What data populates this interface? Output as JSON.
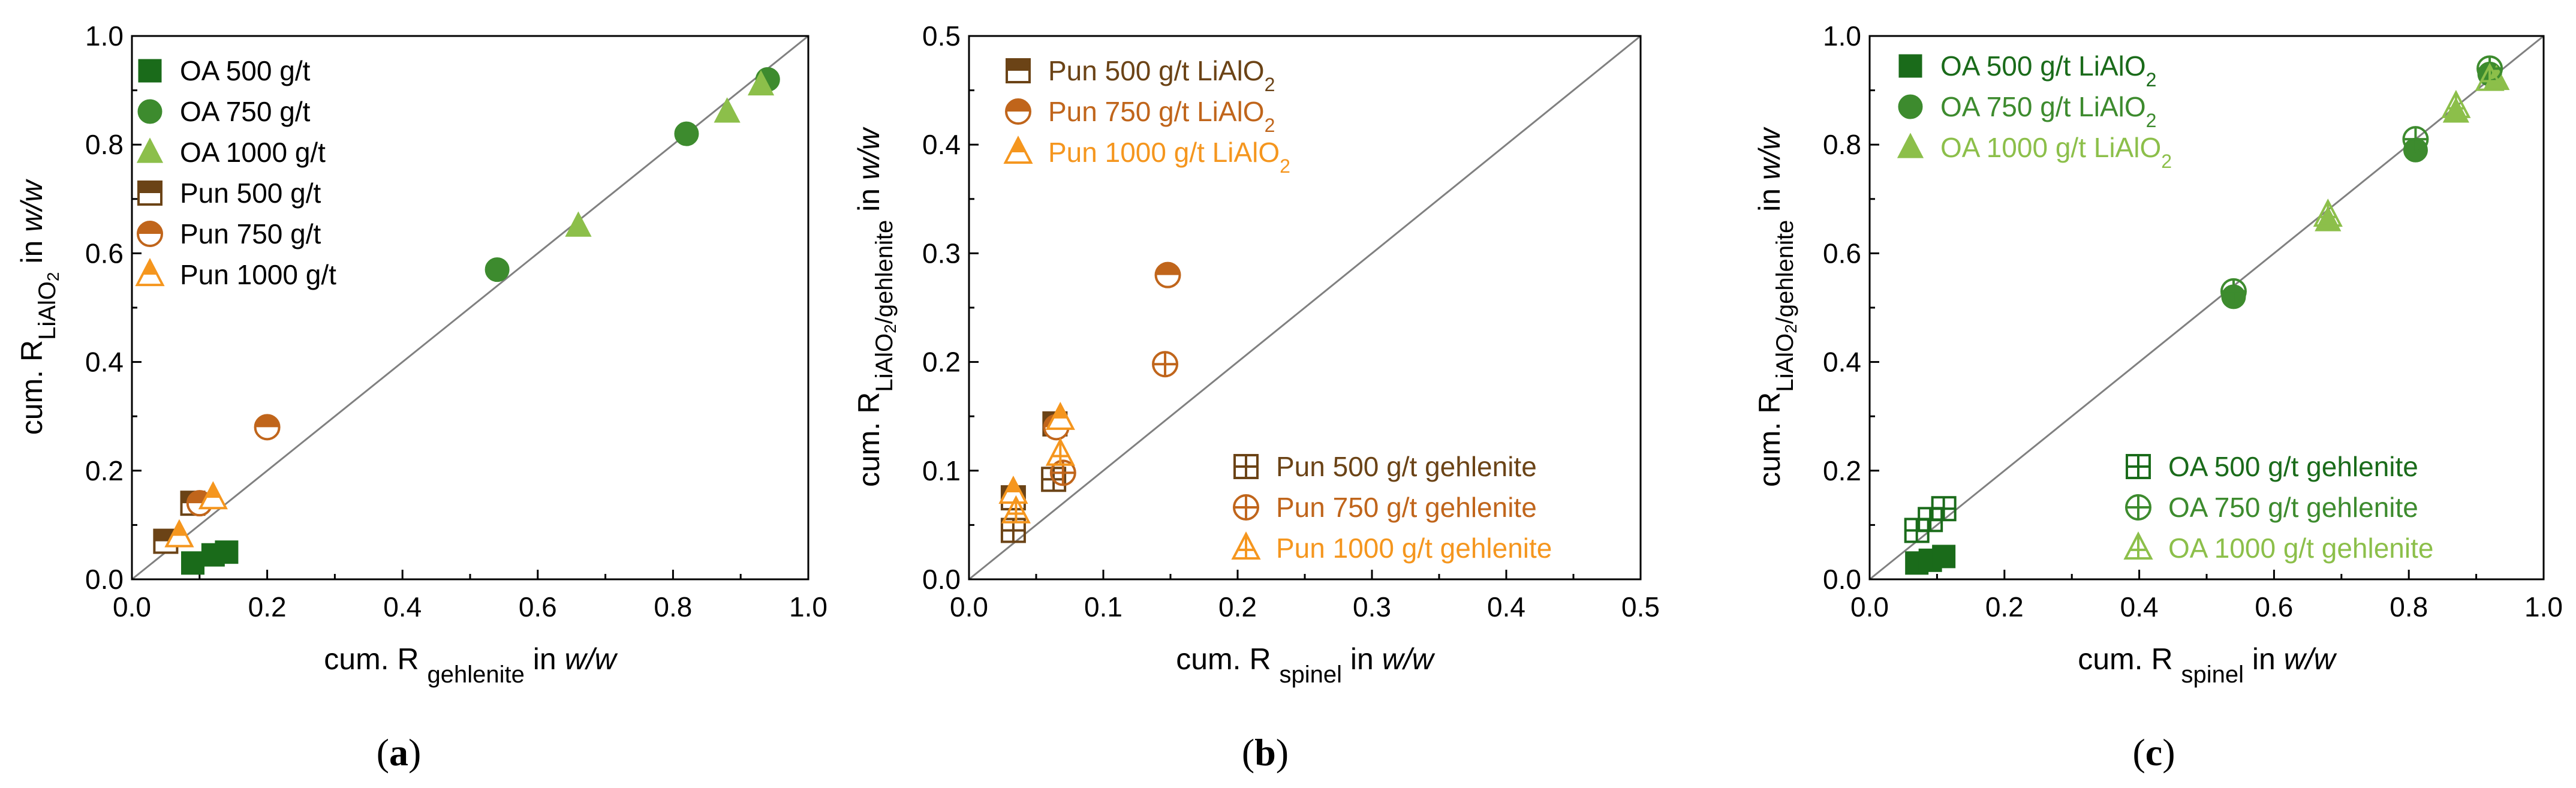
{
  "chart_data": [
    {
      "type": "scatter",
      "panel_label": "(a)",
      "panel_letter": "a",
      "xlabel": "cum. R gehlenite in w/w",
      "xlabel_parts": [
        "cum. R ",
        "gehlenite",
        " in ",
        "w/w"
      ],
      "ylabel": "cum. R LiAlO2 in w/w",
      "ylabel_parts": [
        "cum. R",
        "LiAlO",
        "2",
        " in ",
        "w/w"
      ],
      "xlim": [
        0.0,
        1.0
      ],
      "ylim": [
        0.0,
        1.0
      ],
      "x_ticks": [
        "0.0",
        "0.2",
        "0.4",
        "0.6",
        "0.8",
        "1.0"
      ],
      "y_ticks": [
        "0.0",
        "0.2",
        "0.4",
        "0.6",
        "0.8",
        "1.0"
      ],
      "diagonal": true,
      "legend_position": "top-left",
      "series": [
        {
          "name": "OA 500 g/t",
          "name_parts": [
            "OA 500 g/t"
          ],
          "label_color": "#000000",
          "marker": "square",
          "color": "#1a6b1a",
          "points": [
            [
              0.09,
              0.03
            ],
            [
              0.12,
              0.045
            ],
            [
              0.14,
              0.05
            ]
          ]
        },
        {
          "name": "OA 750 g/t",
          "name_parts": [
            "OA 750 g/t"
          ],
          "label_color": "#000000",
          "marker": "circle",
          "color": "#3d8b2e",
          "points": [
            [
              0.54,
              0.57
            ],
            [
              0.82,
              0.82
            ],
            [
              0.94,
              0.92
            ]
          ]
        },
        {
          "name": "OA 1000 g/t",
          "name_parts": [
            "OA 1000 g/t"
          ],
          "label_color": "#000000",
          "marker": "triangle",
          "color": "#8cbf4a",
          "points": [
            [
              0.66,
              0.65
            ],
            [
              0.88,
              0.86
            ],
            [
              0.93,
              0.91
            ]
          ]
        },
        {
          "name": "Pun 500 g/t",
          "name_parts": [
            "Pun 500 g/t"
          ],
          "label_color": "#000000",
          "marker": "square-half",
          "color": "#6b4316",
          "points": [
            [
              0.05,
              0.07
            ],
            [
              0.09,
              0.14
            ]
          ]
        },
        {
          "name": "Pun 750 g/t",
          "name_parts": [
            "Pun 750 g/t"
          ],
          "label_color": "#000000",
          "marker": "circle-half",
          "color": "#c0651b",
          "points": [
            [
              0.1,
              0.14
            ],
            [
              0.2,
              0.28
            ]
          ]
        },
        {
          "name": "Pun 1000 g/t",
          "name_parts": [
            "Pun 1000 g/t"
          ],
          "label_color": "#000000",
          "marker": "triangle-half",
          "color": "#f5961e",
          "points": [
            [
              0.07,
              0.08
            ],
            [
              0.12,
              0.15
            ]
          ]
        }
      ]
    },
    {
      "type": "scatter",
      "panel_label": "(b)",
      "panel_letter": "b",
      "xlabel": "cum. R spinel in w/w",
      "xlabel_parts": [
        "cum. R ",
        "spinel",
        " in ",
        "w/w"
      ],
      "ylabel": "cum. R LiAlO2/gehlenite in w/w",
      "ylabel_parts": [
        "cum. R",
        "LiAlO",
        "2",
        "/gehlenite",
        " in ",
        "w/w"
      ],
      "xlim": [
        0.0,
        0.5
      ],
      "ylim": [
        0.0,
        0.5
      ],
      "x_ticks": [
        "0.0",
        "0.1",
        "0.2",
        "0.3",
        "0.4",
        "0.5"
      ],
      "y_ticks": [
        "0.0",
        "0.1",
        "0.2",
        "0.3",
        "0.4",
        "0.5"
      ],
      "diagonal": true,
      "legend_position": "top-left and bottom-right",
      "series": [
        {
          "name": "Pun 500 g/t LiAlO2",
          "name_parts": [
            "Pun 500 g/t LiAlO",
            "2"
          ],
          "label_color": "#6b4316",
          "marker": "square-half",
          "color": "#6b4316",
          "group": "top",
          "points": [
            [
              0.033,
              0.075
            ],
            [
              0.064,
              0.143
            ]
          ]
        },
        {
          "name": "Pun 750 g/t LiAlO2",
          "name_parts": [
            "Pun 750 g/t LiAlO",
            "2"
          ],
          "label_color": "#c0651b",
          "marker": "circle-half",
          "color": "#c0651b",
          "group": "top",
          "points": [
            [
              0.065,
              0.14
            ],
            [
              0.148,
              0.28
            ]
          ]
        },
        {
          "name": "Pun 1000 g/t LiAlO2",
          "name_parts": [
            "Pun 1000 g/t LiAlO",
            "2"
          ],
          "label_color": "#f5961e",
          "marker": "triangle-half",
          "color": "#f5961e",
          "group": "top",
          "points": [
            [
              0.033,
              0.08
            ],
            [
              0.068,
              0.148
            ]
          ]
        },
        {
          "name": "Pun 500 g/t gehlenite",
          "name_parts": [
            "Pun 500 g/t gehlenite"
          ],
          "label_color": "#6b4316",
          "marker": "square-plus",
          "color": "#6b4316",
          "group": "bottom",
          "points": [
            [
              0.033,
              0.045
            ],
            [
              0.063,
              0.092
            ]
          ]
        },
        {
          "name": "Pun 750 g/t gehlenite",
          "name_parts": [
            "Pun 750 g/t gehlenite"
          ],
          "label_color": "#c0651b",
          "marker": "circle-plus",
          "color": "#c0651b",
          "group": "bottom",
          "points": [
            [
              0.07,
              0.098
            ],
            [
              0.146,
              0.198
            ]
          ]
        },
        {
          "name": "Pun 1000 g/t gehlenite",
          "name_parts": [
            "Pun 1000 g/t gehlenite"
          ],
          "label_color": "#f5961e",
          "marker": "triangle-plus",
          "color": "#f5961e",
          "group": "bottom",
          "points": [
            [
              0.035,
              0.062
            ],
            [
              0.068,
              0.115
            ]
          ]
        }
      ]
    },
    {
      "type": "scatter",
      "panel_label": "(c)",
      "panel_letter": "c",
      "xlabel": "cum. R spinel in w/w",
      "xlabel_parts": [
        "cum. R ",
        "spinel",
        " in ",
        "w/w"
      ],
      "ylabel": "cum. R LiAlO2/gehlenite in w/w",
      "ylabel_parts": [
        "cum. R",
        "LiAlO",
        "2",
        "/gehlenite",
        " in ",
        "w/w"
      ],
      "xlim": [
        0.0,
        1.0
      ],
      "ylim": [
        0.0,
        1.0
      ],
      "x_ticks": [
        "0.0",
        "0.2",
        "0.4",
        "0.6",
        "0.8",
        "1.0"
      ],
      "y_ticks": [
        "0.0",
        "0.2",
        "0.4",
        "0.6",
        "0.8",
        "1.0"
      ],
      "diagonal": true,
      "legend_position": "top-left and bottom-right",
      "series": [
        {
          "name": "OA 500 g/t LiAlO2",
          "name_parts": [
            "OA 500 g/t LiAlO",
            "2"
          ],
          "label_color": "#1a6b1a",
          "marker": "square",
          "color": "#1a6b1a",
          "group": "top",
          "points": [
            [
              0.07,
              0.03
            ],
            [
              0.09,
              0.035
            ],
            [
              0.11,
              0.042
            ]
          ]
        },
        {
          "name": "OA 750 g/t LiAlO2",
          "name_parts": [
            "OA 750 g/t LiAlO",
            "2"
          ],
          "label_color": "#3d8b2e",
          "marker": "circle",
          "color": "#3d8b2e",
          "group": "top",
          "points": [
            [
              0.54,
              0.52
            ],
            [
              0.81,
              0.79
            ],
            [
              0.92,
              0.93
            ]
          ]
        },
        {
          "name": "OA 1000 g/t LiAlO2",
          "name_parts": [
            "OA 1000 g/t LiAlO",
            "2"
          ],
          "label_color": "#8cbf4a",
          "marker": "triangle",
          "color": "#8cbf4a",
          "group": "top",
          "points": [
            [
              0.68,
              0.66
            ],
            [
              0.87,
              0.86
            ],
            [
              0.93,
              0.92
            ]
          ]
        },
        {
          "name": "OA 500 g/t gehlenite",
          "name_parts": [
            "OA 500 g/t gehlenite"
          ],
          "label_color": "#1a6b1a",
          "marker": "square-plus",
          "color": "#1a6b1a",
          "group": "bottom",
          "points": [
            [
              0.07,
              0.09
            ],
            [
              0.09,
              0.11
            ],
            [
              0.11,
              0.13
            ]
          ]
        },
        {
          "name": "OA 750 g/t gehlenite",
          "name_parts": [
            "OA 750 g/t gehlenite"
          ],
          "label_color": "#3d8b2e",
          "marker": "circle-plus",
          "color": "#3d8b2e",
          "group": "bottom",
          "points": [
            [
              0.54,
              0.53
            ],
            [
              0.81,
              0.81
            ],
            [
              0.92,
              0.94
            ]
          ]
        },
        {
          "name": "OA 1000 g/t gehlenite",
          "name_parts": [
            "OA 1000 g/t gehlenite"
          ],
          "label_color": "#8cbf4a",
          "marker": "triangle-plus",
          "color": "#8cbf4a",
          "group": "bottom",
          "points": [
            [
              0.68,
              0.67
            ],
            [
              0.87,
              0.87
            ],
            [
              0.92,
              0.92
            ]
          ]
        }
      ]
    }
  ]
}
